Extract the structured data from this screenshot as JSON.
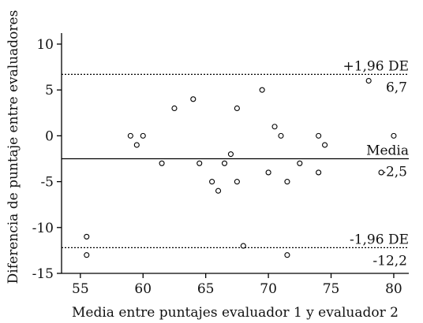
{
  "chart_data": {
    "type": "scatter",
    "title": "",
    "xlabel": "Media entre puntajes evaluador 1 y evaluador 2",
    "ylabel": "Diferencia de puntaje entre evaluadores",
    "xlim": [
      53.5,
      81.2
    ],
    "ylim": [
      -15,
      11.2
    ],
    "xticks": [
      55,
      60,
      65,
      70,
      75,
      80
    ],
    "yticks": [
      10,
      5,
      0,
      -5,
      -10,
      -15
    ],
    "xtick_labels": [
      "55",
      "60",
      "65",
      "70",
      "75",
      "80"
    ],
    "ytick_labels": [
      "10",
      "5",
      "0",
      "-5",
      "-10",
      "-15"
    ],
    "grid": false,
    "reference_lines": [
      {
        "y": 6.7,
        "style": "dotted",
        "label_top": "+1,96 DE",
        "label_bottom": "6,7"
      },
      {
        "y": -2.5,
        "style": "solid",
        "label_top": "Media",
        "label_bottom": "-2,5"
      },
      {
        "y": -12.2,
        "style": "dotted",
        "label_top": "-1,96 DE",
        "label_bottom": "-12,2"
      }
    ],
    "points": [
      {
        "x": 55.5,
        "y": -11
      },
      {
        "x": 55.5,
        "y": -13
      },
      {
        "x": 59,
        "y": 0
      },
      {
        "x": 59.5,
        "y": -1
      },
      {
        "x": 60,
        "y": 0
      },
      {
        "x": 61.5,
        "y": -3
      },
      {
        "x": 62.5,
        "y": 3
      },
      {
        "x": 64,
        "y": 4
      },
      {
        "x": 64.5,
        "y": -3
      },
      {
        "x": 65.5,
        "y": -5
      },
      {
        "x": 66,
        "y": -6
      },
      {
        "x": 66.5,
        "y": -3
      },
      {
        "x": 67,
        "y": -2
      },
      {
        "x": 67.5,
        "y": 3
      },
      {
        "x": 67.5,
        "y": -5
      },
      {
        "x": 68,
        "y": -12
      },
      {
        "x": 69.5,
        "y": 5
      },
      {
        "x": 70,
        "y": -4
      },
      {
        "x": 70.5,
        "y": 1
      },
      {
        "x": 71,
        "y": 0
      },
      {
        "x": 71.5,
        "y": -5
      },
      {
        "x": 71.5,
        "y": -13
      },
      {
        "x": 72.5,
        "y": -3
      },
      {
        "x": 74,
        "y": 0
      },
      {
        "x": 74,
        "y": -4
      },
      {
        "x": 74.5,
        "y": -1
      },
      {
        "x": 78,
        "y": 6
      },
      {
        "x": 79,
        "y": -4
      },
      {
        "x": 80,
        "y": 0
      }
    ]
  }
}
